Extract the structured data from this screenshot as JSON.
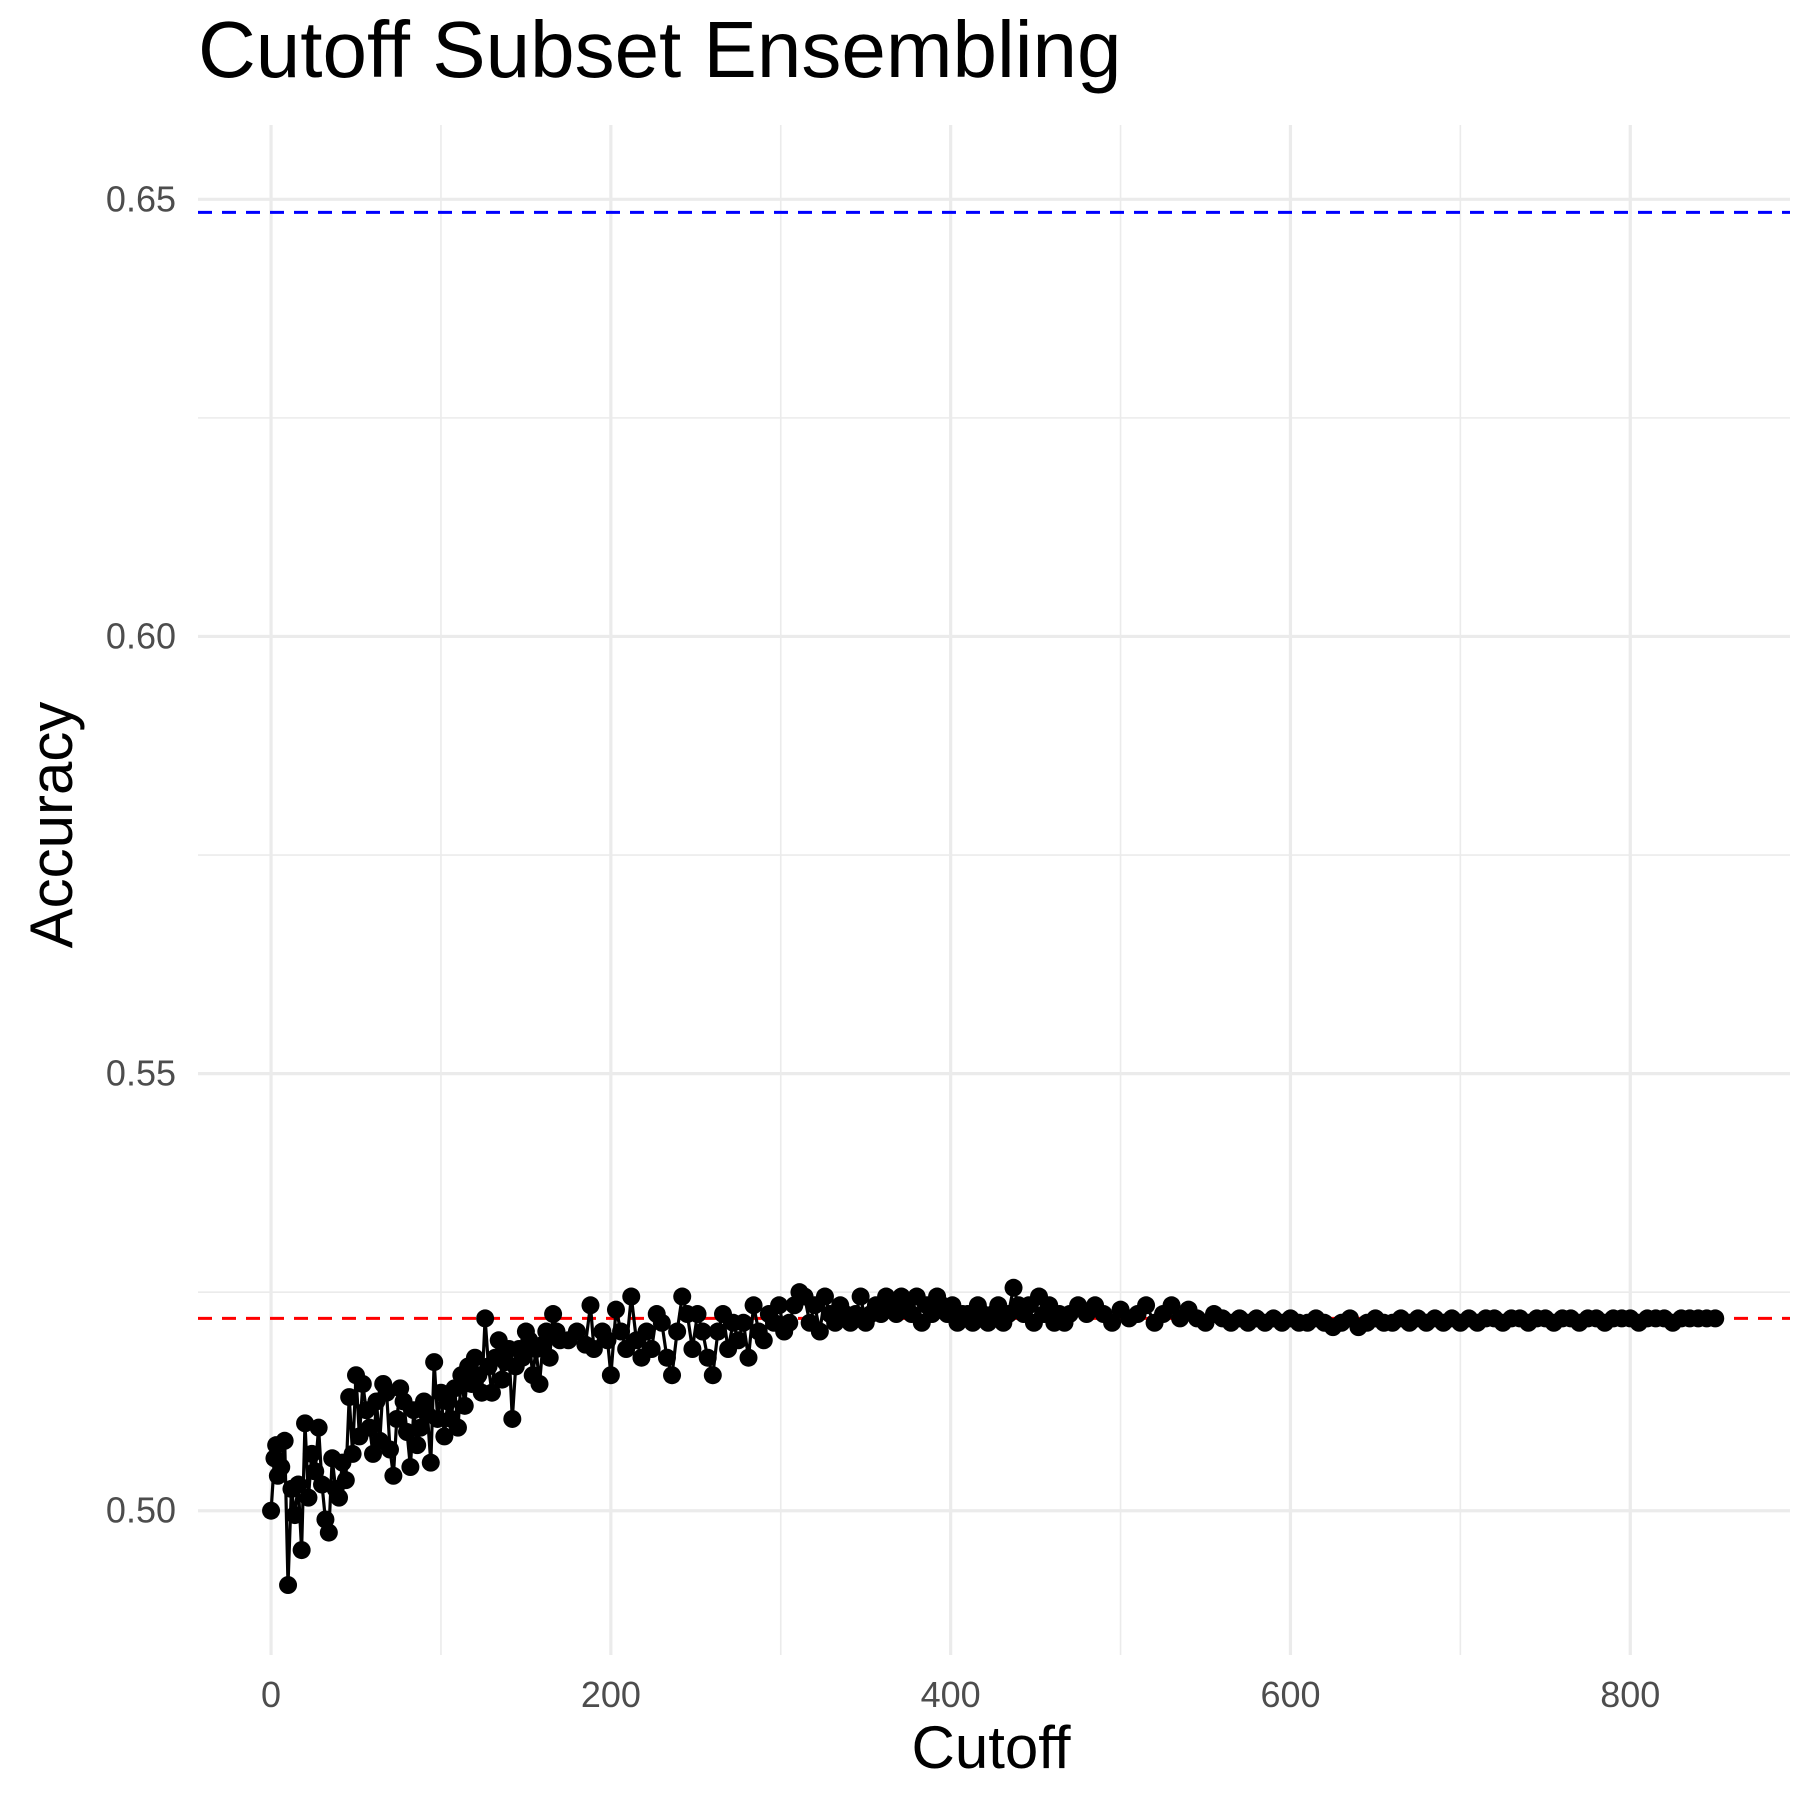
{
  "chart_data": {
    "type": "line",
    "title": "Cutoff Subset Ensembling",
    "xlabel": "Cutoff",
    "ylabel": "Accuracy",
    "xlim": [
      -43,
      894
    ],
    "ylim": [
      0.4835,
      0.6585
    ],
    "x_ticks": [
      0,
      200,
      400,
      600,
      800
    ],
    "y_ticks": [
      0.5,
      0.55,
      0.6,
      0.65
    ],
    "x_tick_labels": [
      "0",
      "200",
      "400",
      "600",
      "800"
    ],
    "y_tick_labels": [
      "0.50",
      "0.55",
      "0.60",
      "0.65"
    ],
    "grid": true,
    "reference_lines": [
      {
        "y": 0.6485,
        "color": "#0000ff",
        "style": "dashed"
      },
      {
        "y": 0.522,
        "color": "#ff0000",
        "style": "dashed"
      }
    ],
    "series": [
      {
        "color": "#000000",
        "points": [
          [
            0,
            0.5
          ],
          [
            2,
            0.506
          ],
          [
            3,
            0.5075
          ],
          [
            4,
            0.504
          ],
          [
            6,
            0.505
          ],
          [
            8,
            0.508
          ],
          [
            10,
            0.4915
          ],
          [
            12,
            0.5025
          ],
          [
            14,
            0.4995
          ],
          [
            16,
            0.503
          ],
          [
            18,
            0.4955
          ],
          [
            20,
            0.51
          ],
          [
            22,
            0.5015
          ],
          [
            24,
            0.5065
          ],
          [
            26,
            0.5045
          ],
          [
            28,
            0.5095
          ],
          [
            30,
            0.503
          ],
          [
            32,
            0.499
          ],
          [
            34,
            0.4975
          ],
          [
            36,
            0.506
          ],
          [
            38,
            0.5025
          ],
          [
            40,
            0.5015
          ],
          [
            42,
            0.5055
          ],
          [
            44,
            0.5035
          ],
          [
            46,
            0.513
          ],
          [
            48,
            0.5065
          ],
          [
            50,
            0.5155
          ],
          [
            52,
            0.5085
          ],
          [
            54,
            0.5145
          ],
          [
            56,
            0.5115
          ],
          [
            58,
            0.5095
          ],
          [
            60,
            0.5065
          ],
          [
            62,
            0.5125
          ],
          [
            64,
            0.508
          ],
          [
            66,
            0.5145
          ],
          [
            68,
            0.5135
          ],
          [
            70,
            0.507
          ],
          [
            72,
            0.504
          ],
          [
            74,
            0.5105
          ],
          [
            76,
            0.514
          ],
          [
            78,
            0.5125
          ],
          [
            80,
            0.509
          ],
          [
            82,
            0.505
          ],
          [
            84,
            0.5115
          ],
          [
            86,
            0.5075
          ],
          [
            88,
            0.5095
          ],
          [
            90,
            0.5125
          ],
          [
            92,
            0.511
          ],
          [
            94,
            0.5055
          ],
          [
            96,
            0.517
          ],
          [
            98,
            0.5105
          ],
          [
            100,
            0.5135
          ],
          [
            102,
            0.5085
          ],
          [
            104,
            0.5125
          ],
          [
            106,
            0.5105
          ],
          [
            108,
            0.514
          ],
          [
            110,
            0.5095
          ],
          [
            112,
            0.5155
          ],
          [
            114,
            0.512
          ],
          [
            116,
            0.5165
          ],
          [
            118,
            0.5145
          ],
          [
            120,
            0.5175
          ],
          [
            122,
            0.5155
          ],
          [
            124,
            0.5135
          ],
          [
            126,
            0.522
          ],
          [
            128,
            0.5165
          ],
          [
            130,
            0.5135
          ],
          [
            132,
            0.5175
          ],
          [
            134,
            0.5195
          ],
          [
            136,
            0.515
          ],
          [
            138,
            0.517
          ],
          [
            140,
            0.5185
          ],
          [
            142,
            0.5105
          ],
          [
            144,
            0.5165
          ],
          [
            146,
            0.5185
          ],
          [
            148,
            0.5175
          ],
          [
            150,
            0.5205
          ],
          [
            152,
            0.5195
          ],
          [
            154,
            0.5155
          ],
          [
            156,
            0.5185
          ],
          [
            158,
            0.5145
          ],
          [
            160,
            0.519
          ],
          [
            162,
            0.5205
          ],
          [
            164,
            0.5175
          ],
          [
            166,
            0.5225
          ],
          [
            168,
            0.5205
          ],
          [
            170,
            0.5195
          ],
          [
            175,
            0.5195
          ],
          [
            180,
            0.5205
          ],
          [
            185,
            0.519
          ],
          [
            188,
            0.5235
          ],
          [
            190,
            0.5185
          ],
          [
            195,
            0.5205
          ],
          [
            198,
            0.5195
          ],
          [
            200,
            0.5155
          ],
          [
            203,
            0.523
          ],
          [
            206,
            0.5205
          ],
          [
            209,
            0.5185
          ],
          [
            212,
            0.5245
          ],
          [
            215,
            0.5195
          ],
          [
            218,
            0.5175
          ],
          [
            221,
            0.5205
          ],
          [
            224,
            0.5185
          ],
          [
            227,
            0.5225
          ],
          [
            230,
            0.5215
          ],
          [
            233,
            0.5175
          ],
          [
            236,
            0.5155
          ],
          [
            239,
            0.5205
          ],
          [
            242,
            0.5245
          ],
          [
            245,
            0.5225
          ],
          [
            248,
            0.5185
          ],
          [
            251,
            0.5225
          ],
          [
            254,
            0.5205
          ],
          [
            257,
            0.5175
          ],
          [
            260,
            0.5155
          ],
          [
            263,
            0.5205
          ],
          [
            266,
            0.5225
          ],
          [
            269,
            0.5185
          ],
          [
            272,
            0.5215
          ],
          [
            275,
            0.5195
          ],
          [
            278,
            0.5215
          ],
          [
            281,
            0.5175
          ],
          [
            284,
            0.5235
          ],
          [
            287,
            0.5205
          ],
          [
            290,
            0.5195
          ],
          [
            293,
            0.5225
          ],
          [
            296,
            0.5215
          ],
          [
            299,
            0.5235
          ],
          [
            302,
            0.5205
          ],
          [
            305,
            0.5215
          ],
          [
            308,
            0.5235
          ],
          [
            311,
            0.525
          ],
          [
            314,
            0.5245
          ],
          [
            317,
            0.5215
          ],
          [
            320,
            0.5235
          ],
          [
            323,
            0.5205
          ],
          [
            326,
            0.5245
          ],
          [
            329,
            0.5225
          ],
          [
            332,
            0.5215
          ],
          [
            335,
            0.5235
          ],
          [
            338,
            0.5225
          ],
          [
            341,
            0.5215
          ],
          [
            344,
            0.5225
          ],
          [
            347,
            0.5245
          ],
          [
            350,
            0.5215
          ],
          [
            353,
            0.5225
          ],
          [
            356,
            0.5235
          ],
          [
            359,
            0.5225
          ],
          [
            362,
            0.5245
          ],
          [
            365,
            0.5235
          ],
          [
            368,
            0.5225
          ],
          [
            371,
            0.5245
          ],
          [
            374,
            0.5235
          ],
          [
            377,
            0.5225
          ],
          [
            380,
            0.5245
          ],
          [
            383,
            0.5215
          ],
          [
            386,
            0.5235
          ],
          [
            389,
            0.5225
          ],
          [
            392,
            0.5245
          ],
          [
            395,
            0.5235
          ],
          [
            398,
            0.5225
          ],
          [
            401,
            0.5235
          ],
          [
            404,
            0.5215
          ],
          [
            407,
            0.5225
          ],
          [
            410,
            0.5225
          ],
          [
            413,
            0.5215
          ],
          [
            416,
            0.5235
          ],
          [
            419,
            0.5225
          ],
          [
            422,
            0.5215
          ],
          [
            425,
            0.5225
          ],
          [
            428,
            0.5235
          ],
          [
            431,
            0.5215
          ],
          [
            434,
            0.5225
          ],
          [
            437,
            0.5255
          ],
          [
            440,
            0.5235
          ],
          [
            443,
            0.5225
          ],
          [
            446,
            0.5235
          ],
          [
            449,
            0.5215
          ],
          [
            452,
            0.5245
          ],
          [
            455,
            0.5225
          ],
          [
            458,
            0.5235
          ],
          [
            461,
            0.5215
          ],
          [
            464,
            0.5225
          ],
          [
            467,
            0.5215
          ],
          [
            470,
            0.5225
          ],
          [
            475,
            0.5235
          ],
          [
            480,
            0.5225
          ],
          [
            485,
            0.5235
          ],
          [
            490,
            0.5225
          ],
          [
            495,
            0.5215
          ],
          [
            500,
            0.523
          ],
          [
            505,
            0.522
          ],
          [
            510,
            0.5225
          ],
          [
            515,
            0.5235
          ],
          [
            520,
            0.5215
          ],
          [
            525,
            0.5225
          ],
          [
            530,
            0.5235
          ],
          [
            535,
            0.522
          ],
          [
            540,
            0.523
          ],
          [
            545,
            0.522
          ],
          [
            550,
            0.5215
          ],
          [
            555,
            0.5225
          ],
          [
            560,
            0.522
          ],
          [
            565,
            0.5215
          ],
          [
            570,
            0.522
          ],
          [
            575,
            0.5215
          ],
          [
            580,
            0.522
          ],
          [
            585,
            0.5215
          ],
          [
            590,
            0.522
          ],
          [
            595,
            0.5215
          ],
          [
            600,
            0.522
          ],
          [
            605,
            0.5215
          ],
          [
            610,
            0.5215
          ],
          [
            615,
            0.522
          ],
          [
            620,
            0.5215
          ],
          [
            625,
            0.521
          ],
          [
            630,
            0.5215
          ],
          [
            635,
            0.522
          ],
          [
            640,
            0.521
          ],
          [
            645,
            0.5215
          ],
          [
            650,
            0.522
          ],
          [
            655,
            0.5215
          ],
          [
            660,
            0.5215
          ],
          [
            665,
            0.522
          ],
          [
            670,
            0.5215
          ],
          [
            675,
            0.522
          ],
          [
            680,
            0.5215
          ],
          [
            685,
            0.522
          ],
          [
            690,
            0.5215
          ],
          [
            695,
            0.522
          ],
          [
            700,
            0.5215
          ],
          [
            705,
            0.522
          ],
          [
            710,
            0.5215
          ],
          [
            715,
            0.522
          ],
          [
            720,
            0.522
          ],
          [
            725,
            0.5215
          ],
          [
            730,
            0.522
          ],
          [
            735,
            0.522
          ],
          [
            740,
            0.5215
          ],
          [
            745,
            0.522
          ],
          [
            750,
            0.522
          ],
          [
            755,
            0.5215
          ],
          [
            760,
            0.522
          ],
          [
            765,
            0.522
          ],
          [
            770,
            0.5215
          ],
          [
            775,
            0.522
          ],
          [
            780,
            0.522
          ],
          [
            785,
            0.5215
          ],
          [
            790,
            0.522
          ],
          [
            795,
            0.522
          ],
          [
            800,
            0.522
          ],
          [
            805,
            0.5215
          ],
          [
            810,
            0.522
          ],
          [
            815,
            0.522
          ],
          [
            820,
            0.522
          ],
          [
            825,
            0.5215
          ],
          [
            830,
            0.522
          ],
          [
            835,
            0.522
          ],
          [
            840,
            0.522
          ],
          [
            845,
            0.522
          ],
          [
            850,
            0.522
          ]
        ]
      }
    ]
  }
}
